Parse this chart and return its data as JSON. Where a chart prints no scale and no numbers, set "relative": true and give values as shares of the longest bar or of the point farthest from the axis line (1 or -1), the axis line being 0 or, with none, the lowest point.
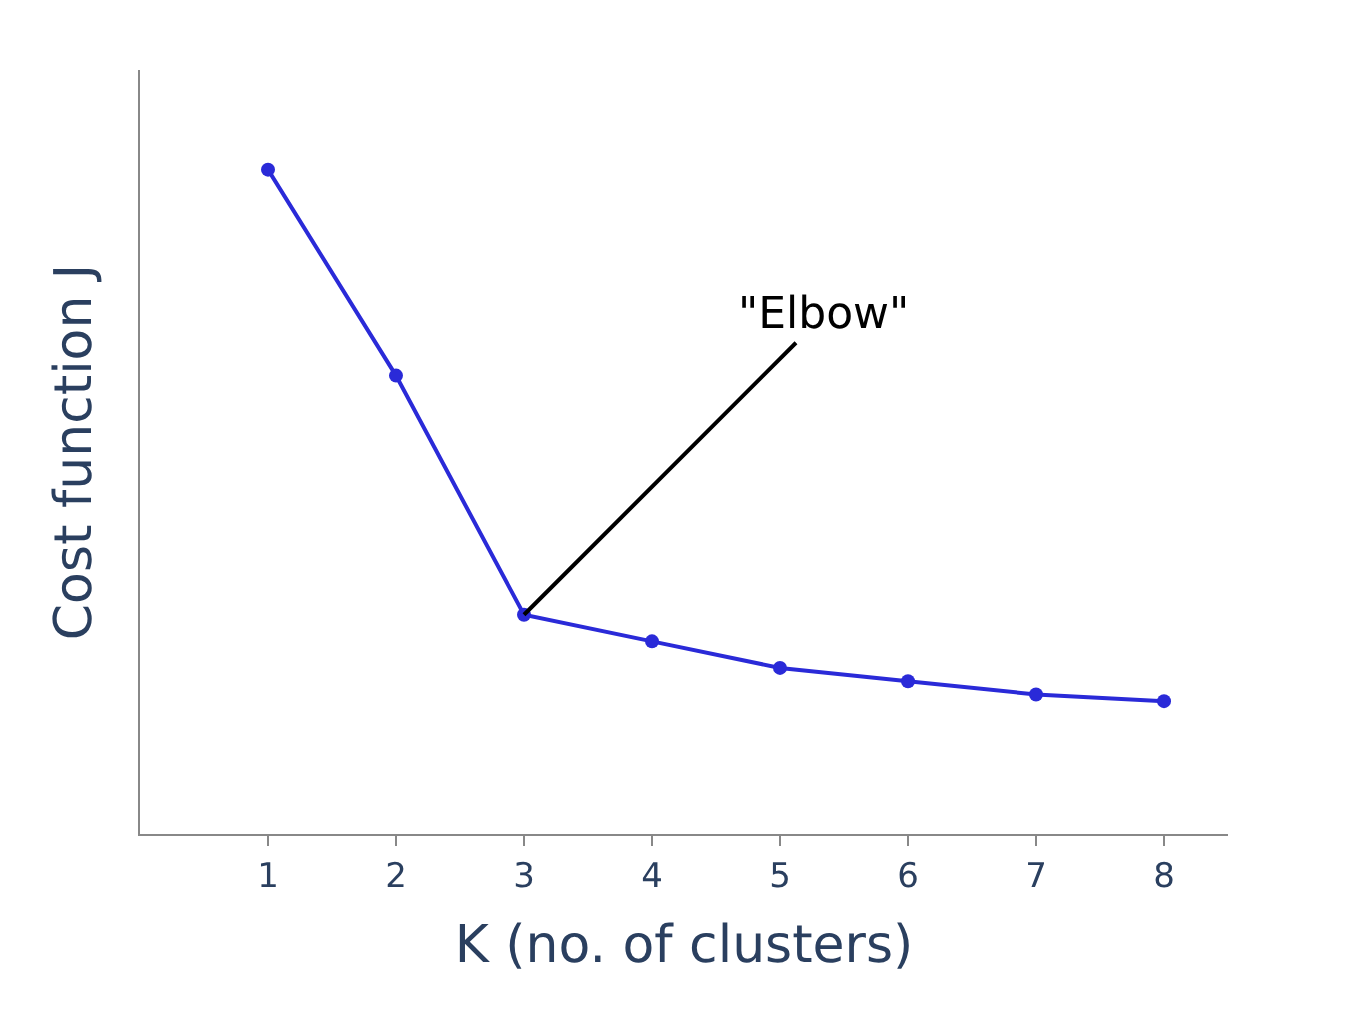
{
  "chart_data": {
    "type": "line",
    "relative": true,
    "xlabel": "K (no. of clusters)",
    "ylabel": "Cost function J",
    "x": [
      1,
      2,
      3,
      4,
      5,
      6,
      7,
      8
    ],
    "xlim": [
      0,
      8.5
    ],
    "xticks": [
      1,
      2,
      3,
      4,
      5,
      6,
      7,
      8
    ],
    "series": [
      {
        "color": "#2a2ad8",
        "values": [
          1,
          0.69,
          0.33,
          0.29,
          0.25,
          0.23,
          0.21,
          0.2
        ]
      }
    ],
    "annotations": [
      {
        "text": "\"Elbow\"",
        "x": 3,
        "y": 0.33
      }
    ],
    "marker": "circle",
    "line_style": "solid"
  }
}
